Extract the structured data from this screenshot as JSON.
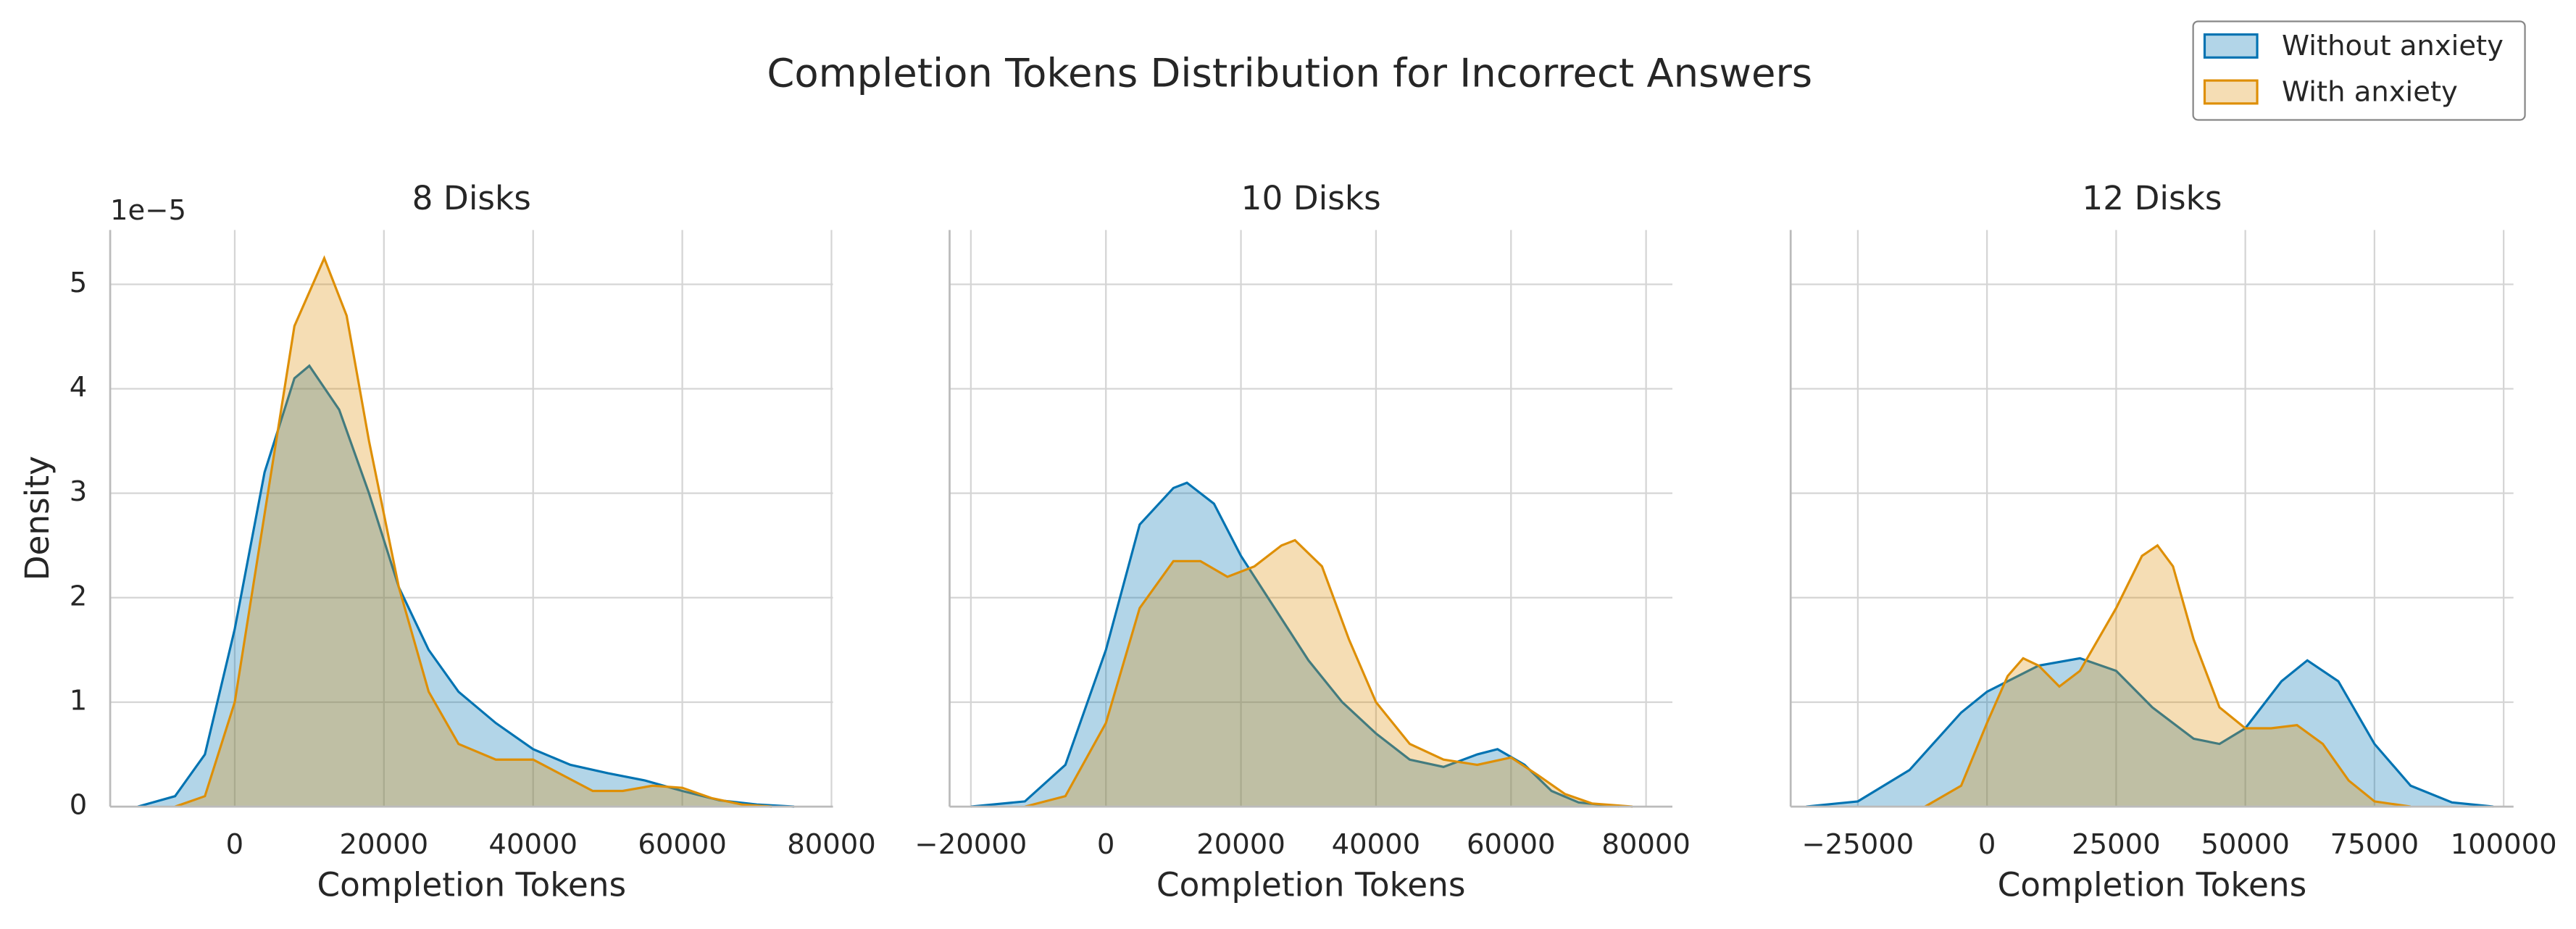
{
  "title": "Completion Tokens Distribution for Incorrect Answers",
  "legend": {
    "loc": "upper right"
  },
  "chart_data": [
    {
      "type": "kde",
      "title": "8 Disks",
      "xlabel": "Completion Tokens",
      "ylabel": "Density",
      "y_offset_label": "1e−5",
      "xlim": [
        -16700,
        80200
      ],
      "xticks": [
        0,
        20000,
        40000,
        60000,
        80000
      ],
      "ylim": [
        0,
        5.52
      ],
      "yticks": [
        0,
        1,
        2,
        3,
        4,
        5
      ],
      "grid": true,
      "series": [
        {
          "name": "Without anxiety",
          "color": "#0173b2",
          "x": [
            -13000,
            -8000,
            -4000,
            0,
            4000,
            8000,
            10000,
            14000,
            18000,
            22000,
            26000,
            30000,
            35000,
            40000,
            45000,
            50000,
            55000,
            60000,
            65000,
            70000,
            75000
          ],
          "values": [
            0,
            0.1,
            0.5,
            1.7,
            3.2,
            4.1,
            4.22,
            3.8,
            3.0,
            2.1,
            1.5,
            1.1,
            0.8,
            0.55,
            0.4,
            0.32,
            0.25,
            0.15,
            0.06,
            0.02,
            0
          ]
        },
        {
          "name": "With anxiety",
          "color": "#de8f05",
          "x": [
            -8000,
            -4000,
            0,
            4000,
            8000,
            12000,
            15000,
            18000,
            22000,
            26000,
            30000,
            35000,
            40000,
            44000,
            48000,
            52000,
            56000,
            60000,
            64000,
            68000,
            72000
          ],
          "values": [
            0,
            0.1,
            1.0,
            2.8,
            4.6,
            5.25,
            4.7,
            3.5,
            2.1,
            1.1,
            0.6,
            0.45,
            0.45,
            0.3,
            0.15,
            0.15,
            0.2,
            0.18,
            0.08,
            0.02,
            0
          ]
        }
      ]
    },
    {
      "type": "kde",
      "title": "10 Disks",
      "xlabel": "Completion Tokens",
      "xlim": [
        -23150,
        83900
      ],
      "xticks": [
        {
          "value": -20000,
          "label": "−20000"
        },
        0,
        20000,
        40000,
        60000,
        80000
      ],
      "series": [
        {
          "name": "Without anxiety",
          "color": "#0173b2",
          "x": [
            -20000,
            -12000,
            -6000,
            0,
            5000,
            10000,
            12000,
            16000,
            20000,
            25000,
            30000,
            35000,
            40000,
            45000,
            50000,
            55000,
            58000,
            62000,
            66000,
            70000,
            76000
          ],
          "values": [
            0,
            0.05,
            0.4,
            1.5,
            2.7,
            3.05,
            3.1,
            2.9,
            2.4,
            1.9,
            1.4,
            1.0,
            0.7,
            0.45,
            0.38,
            0.5,
            0.55,
            0.4,
            0.15,
            0.04,
            0
          ]
        },
        {
          "name": "With anxiety",
          "color": "#de8f05",
          "x": [
            -12000,
            -6000,
            0,
            5000,
            10000,
            14000,
            18000,
            22000,
            26000,
            28000,
            32000,
            36000,
            40000,
            45000,
            50000,
            55000,
            60000,
            64000,
            68000,
            72000,
            78000
          ],
          "values": [
            0,
            0.1,
            0.8,
            1.9,
            2.35,
            2.35,
            2.2,
            2.3,
            2.5,
            2.55,
            2.3,
            1.6,
            1.0,
            0.6,
            0.45,
            0.4,
            0.47,
            0.3,
            0.12,
            0.03,
            0
          ]
        }
      ]
    },
    {
      "type": "kde",
      "title": "12 Disks",
      "xlabel": "Completion Tokens",
      "xlim": [
        -38000,
        101900
      ],
      "xticks": [
        {
          "value": -25000,
          "label": "−25000"
        },
        0,
        25000,
        50000,
        75000,
        100000
      ],
      "series": [
        {
          "name": "Without anxiety",
          "color": "#0173b2",
          "x": [
            -35000,
            -25000,
            -15000,
            -5000,
            0,
            10000,
            18000,
            25000,
            32000,
            40000,
            45000,
            50000,
            57000,
            62000,
            68000,
            75000,
            82000,
            90000,
            98000
          ],
          "values": [
            0,
            0.05,
            0.35,
            0.9,
            1.1,
            1.35,
            1.42,
            1.3,
            0.95,
            0.65,
            0.6,
            0.75,
            1.2,
            1.4,
            1.2,
            0.6,
            0.2,
            0.04,
            0
          ]
        },
        {
          "name": "With anxiety",
          "color": "#de8f05",
          "x": [
            -12000,
            -5000,
            0,
            4000,
            7000,
            10000,
            14000,
            18000,
            25000,
            30000,
            33000,
            36000,
            40000,
            45000,
            50000,
            55000,
            60000,
            65000,
            70000,
            75000,
            82000
          ],
          "values": [
            0,
            0.2,
            0.8,
            1.25,
            1.42,
            1.35,
            1.15,
            1.3,
            1.9,
            2.4,
            2.5,
            2.3,
            1.6,
            0.95,
            0.75,
            0.75,
            0.78,
            0.6,
            0.25,
            0.05,
            0
          ]
        }
      ]
    }
  ]
}
